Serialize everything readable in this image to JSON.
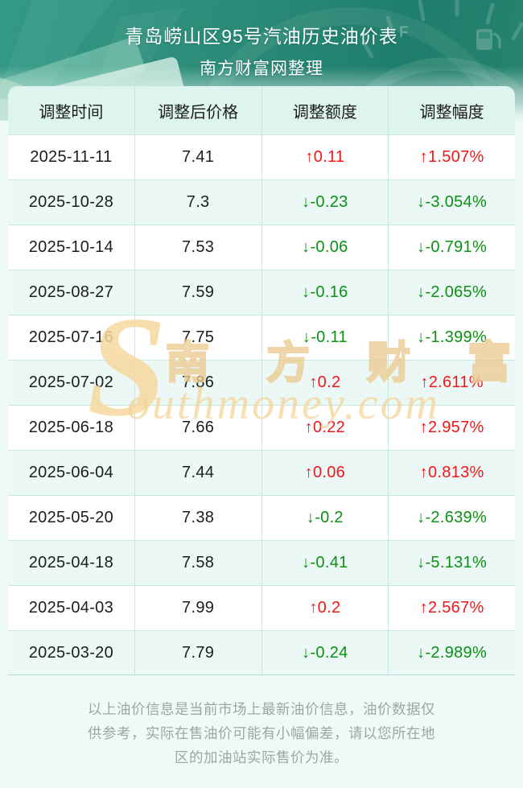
{
  "banner": {
    "title_line1": "青岛崂山区95号汽油历史油价表",
    "title_line2": "南方财富网整理"
  },
  "table": {
    "headers": [
      "调整时间",
      "调整后价格",
      "调整额度",
      "调整幅度"
    ],
    "rows": [
      {
        "date": "2025-11-11",
        "price": "7.41",
        "change": "↑0.11",
        "pct": "↑1.507%",
        "dir": "up"
      },
      {
        "date": "2025-10-28",
        "price": "7.3",
        "change": "↓-0.23",
        "pct": "↓-3.054%",
        "dir": "down"
      },
      {
        "date": "2025-10-14",
        "price": "7.53",
        "change": "↓-0.06",
        "pct": "↓-0.791%",
        "dir": "down"
      },
      {
        "date": "2025-08-27",
        "price": "7.59",
        "change": "↓-0.16",
        "pct": "↓-2.065%",
        "dir": "down"
      },
      {
        "date": "2025-07-16",
        "price": "7.75",
        "change": "↓-0.11",
        "pct": "↓-1.399%",
        "dir": "down"
      },
      {
        "date": "2025-07-02",
        "price": "7.86",
        "change": "↑0.2",
        "pct": "↑2.611%",
        "dir": "up"
      },
      {
        "date": "2025-06-18",
        "price": "7.66",
        "change": "↑0.22",
        "pct": "↑2.957%",
        "dir": "up"
      },
      {
        "date": "2025-06-04",
        "price": "7.44",
        "change": "↑0.06",
        "pct": "↑0.813%",
        "dir": "up"
      },
      {
        "date": "2025-05-20",
        "price": "7.38",
        "change": "↓-0.2",
        "pct": "↓-2.639%",
        "dir": "down"
      },
      {
        "date": "2025-04-18",
        "price": "7.58",
        "change": "↓-0.41",
        "pct": "↓-5.131%",
        "dir": "down"
      },
      {
        "date": "2025-04-03",
        "price": "7.99",
        "change": "↑0.2",
        "pct": "↑2.567%",
        "dir": "up"
      },
      {
        "date": "2025-03-20",
        "price": "7.79",
        "change": "↓-0.24",
        "pct": "↓-2.989%",
        "dir": "down"
      }
    ]
  },
  "chart_data": {
    "type": "table",
    "title": "青岛崂山区95号汽油历史油价表",
    "subtitle": "南方财富网整理",
    "columns": [
      "调整时间",
      "调整后价格",
      "调整额度",
      "调整幅度"
    ],
    "dates": [
      "2025-11-11",
      "2025-10-28",
      "2025-10-14",
      "2025-08-27",
      "2025-07-16",
      "2025-07-02",
      "2025-06-18",
      "2025-06-04",
      "2025-05-20",
      "2025-04-18",
      "2025-04-03",
      "2025-03-20"
    ],
    "prices": [
      7.41,
      7.3,
      7.53,
      7.59,
      7.75,
      7.86,
      7.66,
      7.44,
      7.38,
      7.58,
      7.99,
      7.79
    ],
    "changes": [
      0.11,
      -0.23,
      -0.06,
      -0.16,
      -0.11,
      0.2,
      0.22,
      0.06,
      -0.2,
      -0.41,
      0.2,
      -0.24
    ],
    "change_pcts": [
      1.507,
      -3.054,
      -0.791,
      -2.065,
      -1.399,
      2.611,
      2.957,
      0.813,
      -2.639,
      -5.131,
      2.567,
      -2.989
    ]
  },
  "watermark": {
    "s": "S",
    "cn": "南 方 财 富 网",
    "en": "outhmoney.com"
  },
  "footer": {
    "lines": [
      "以上油价信息是当前市场上最新油价信息，油价数据仅",
      "供参考，实际在售油价可能有小幅偏差，请以您所在地",
      "区的加油站实际售价为准。"
    ]
  },
  "colors": {
    "up_red": "#f21717",
    "down_green": "#0b9113",
    "banner_teal": "#2d8d7a",
    "header_bg": "#def4ef",
    "alt_row_bg": "#ecf8f5",
    "grid_line": "#c6e8e1",
    "watermark_tan": "#f2d499",
    "footer_gray": "#9da6a3"
  }
}
